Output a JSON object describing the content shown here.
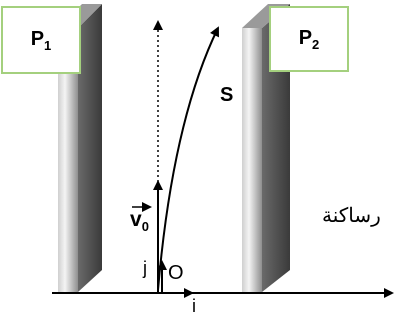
{
  "plate_1": {
    "letter": "P",
    "index": "1"
  },
  "plate_2": {
    "letter": "P",
    "index": "2"
  },
  "trajectory_label": "S",
  "velocity_label": {
    "letter": "v",
    "index": "0"
  },
  "origin_label": "O",
  "unit_vector_i": "i",
  "unit_vector_j": "j",
  "annotation": "رساكنة",
  "colors": {
    "plate_border": "#a4d07e",
    "plate_face_dark": "#4a4a4a",
    "plate_face_light": "#e6e6e6",
    "lines": "#000000"
  }
}
